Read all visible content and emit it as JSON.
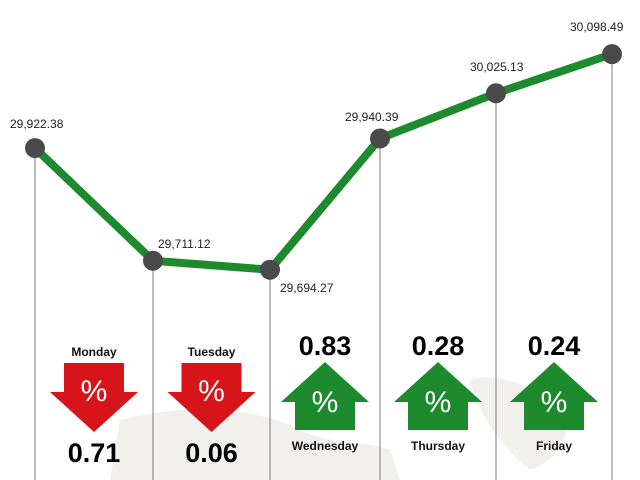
{
  "chart_data": {
    "type": "line",
    "series": [
      {
        "color": "#1e8a2e",
        "values": [
          29922.38,
          29711.12,
          29694.27,
          29940.39,
          30025.13,
          30098.49
        ],
        "value_labels": [
          "29,922.38",
          "29,711.12",
          "29,694.27",
          "29,940.39",
          "30,025.13",
          "30,098.49"
        ]
      }
    ],
    "ylim": [
      29300,
      30200
    ],
    "point_color": "#4a4a4a",
    "changes": {
      "days": [
        "Monday",
        "Tuesday",
        "Wednesday",
        "Thursday",
        "Friday"
      ],
      "values": [
        0.71,
        0.06,
        0.83,
        0.28,
        0.24
      ],
      "directions": [
        "down",
        "down",
        "up",
        "up",
        "up"
      ],
      "symbol": "%",
      "up_color": "#1e8a2e",
      "down_color": "#d7141a"
    }
  }
}
